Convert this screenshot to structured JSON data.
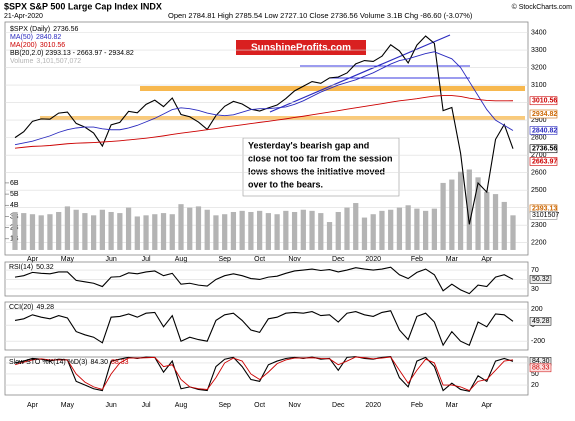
{
  "header": {
    "title": "$SPX S&P 500 Large Cap Index INDX",
    "date": "21-Apr-2020",
    "source": "© StockCharts.com",
    "quote": "Open 2784.81  High 2785.54  Low 2727.10  Close 2736.56  Volume 3.1B  Chg -86.60 (-3.07%)",
    "logo": "SunshineProfits.com",
    "annotation": [
      "Yesterday's bearish gap and",
      "close not too far from the session",
      "lows shows the initiative moved",
      "over to the bears."
    ]
  },
  "chart_data": [
    {
      "type": "line",
      "categories": [
        null,
        null,
        "Apr",
        null,
        null,
        null,
        "May",
        null,
        null,
        null,
        null,
        "Jun",
        null,
        null,
        null,
        "Jul",
        null,
        null,
        null,
        "Aug",
        null,
        null,
        null,
        null,
        "Sep",
        null,
        null,
        null,
        "Oct",
        null,
        null,
        null,
        "Nov",
        null,
        null,
        null,
        null,
        "Dec",
        null,
        null,
        null,
        "2020",
        null,
        null,
        null,
        null,
        "Feb",
        null,
        null,
        null,
        "Mar",
        null,
        null,
        null,
        "Apr",
        null,
        null,
        null
      ],
      "ylim": [
        2130,
        3460
      ],
      "yticks": [
        2200,
        2300,
        2400,
        2500,
        2600,
        2700,
        2800,
        2900,
        3000,
        3100,
        3200,
        3300,
        3400
      ],
      "y2lim": [
        -450000000,
        20400000000
      ],
      "y2ticks": [
        {
          "value": 1000000000,
          "label": "1B"
        },
        {
          "value": 2000000000,
          "label": "2B"
        },
        {
          "value": 3000000000,
          "label": "3B"
        },
        {
          "value": 4000000000,
          "label": "4B"
        },
        {
          "value": 5000000000,
          "label": "5B"
        },
        {
          "value": 6000000000,
          "label": "6B"
        }
      ],
      "grid": true,
      "series": [
        {
          "name": "$SPX (Daily)",
          "last_label": "2736.56",
          "color": "#000000",
          "values": [
            2800,
            2834,
            2893,
            2907,
            2905,
            2940,
            2946,
            2881,
            2860,
            2826,
            2752,
            2873,
            2887,
            2950,
            2942,
            2990,
            3014,
            2977,
            3026,
            2932,
            2919,
            2889,
            2847,
            2926,
            2979,
            3007,
            2992,
            2962,
            2952,
            2970,
            2986,
            3023,
            3067,
            3093,
            3120,
            3110,
            3141,
            3146,
            3169,
            3221,
            3240,
            3235,
            3265,
            3330,
            3295,
            3226,
            3328,
            3380,
            3338,
            2954,
            2972,
            2711,
            2305,
            2541,
            2489,
            2790,
            2875,
            2736.56
          ]
        },
        {
          "name": "MA(50)",
          "last_label": "2840.82",
          "color": "#2b2bbf",
          "values": [
            2760,
            2770,
            2780,
            2795,
            2810,
            2830,
            2845,
            2855,
            2860,
            2860,
            2850,
            2845,
            2845,
            2855,
            2870,
            2890,
            2910,
            2935,
            2960,
            2970,
            2965,
            2955,
            2940,
            2930,
            2925,
            2930,
            2945,
            2960,
            2965,
            2965,
            2970,
            2975,
            2990,
            3010,
            3035,
            3060,
            3080,
            3100,
            3115,
            3130,
            3150,
            3170,
            3195,
            3220,
            3240,
            3250,
            3265,
            3280,
            3290,
            3270,
            3250,
            3200,
            3120,
            3040,
            2960,
            2900,
            2870,
            2840.82
          ]
        },
        {
          "name": "MA(200)",
          "last_label": "3010.56",
          "color": "#cc0000",
          "values": [
            2740,
            2745,
            2750,
            2752,
            2755,
            2760,
            2765,
            2768,
            2770,
            2772,
            2775,
            2778,
            2782,
            2787,
            2792,
            2797,
            2803,
            2810,
            2818,
            2825,
            2832,
            2838,
            2845,
            2852,
            2860,
            2867,
            2873,
            2880,
            2887,
            2893,
            2900,
            2907,
            2915,
            2922,
            2930,
            2938,
            2946,
            2954,
            2962,
            2970,
            2978,
            2986,
            2994,
            3002,
            3010,
            3016,
            3022,
            3030,
            3037,
            3040,
            3040,
            3035,
            3025,
            3018,
            3012,
            3010,
            3010,
            3010.56
          ]
        },
        {
          "name": "Volume",
          "last_label": "3,101,507,072",
          "color": "#b4b4b4",
          "axis": "y2",
          "values": [
            3400000000,
            3300000000,
            3200000000,
            3100000000,
            3200000000,
            3400000000,
            3900000000,
            3600000000,
            3300000000,
            3100000000,
            3600000000,
            3400000000,
            3300000000,
            3800000000,
            3000000000,
            3100000000,
            3200000000,
            3300000000,
            3200000000,
            4100000000,
            3800000000,
            3900000000,
            3600000000,
            3100000000,
            3200000000,
            3400000000,
            3500000000,
            3400000000,
            3500000000,
            3300000000,
            3200000000,
            3500000000,
            3400000000,
            3600000000,
            3500000000,
            3300000000,
            2500000000,
            3400000000,
            3800000000,
            4200000000,
            2900000000,
            3200000000,
            3500000000,
            3600000000,
            3800000000,
            4000000000,
            3700000000,
            3500000000,
            3700000000,
            6000000000,
            6300000000,
            7000000000,
            7200000000,
            6500000000,
            5200000000,
            5000000000,
            4300000000,
            3101507072
          ]
        }
      ],
      "legend_texts": [
        "BB(20,2.0) 2393.13 - 2663.97 - 2934.82"
      ],
      "right_labels": [
        {
          "value": 3010.56,
          "label": "3010.56",
          "color": "#cc0000"
        },
        {
          "value": 2934.82,
          "label": "2934.82",
          "color": "#cc6600"
        },
        {
          "value": 2840.82,
          "label": "2840.82",
          "color": "#2b2bbf"
        },
        {
          "value": 2736.56,
          "label": "2736.56",
          "color": "#000000"
        },
        {
          "value": 2663.97,
          "label": "2663.97",
          "color": "#cc0000"
        },
        {
          "value": 2393.13,
          "label": "2393.13",
          "color": "#cc6600"
        }
      ],
      "volume_label": {
        "value": 3101507072,
        "label": "3101507"
      }
    },
    {
      "type": "line",
      "title": "RSI(14)",
      "last_labels": [
        "50.32"
      ],
      "ylim": [
        15,
        87
      ],
      "yticks": [
        30,
        50,
        70
      ],
      "grid": true,
      "series": [
        {
          "color": "#000000",
          "values": [
            55,
            58,
            65,
            63,
            62,
            66,
            66,
            48,
            45,
            42,
            35,
            55,
            56,
            64,
            62,
            66,
            68,
            58,
            63,
            40,
            42,
            38,
            36,
            50,
            58,
            62,
            58,
            52,
            50,
            55,
            57,
            63,
            68,
            70,
            72,
            69,
            71,
            66,
            70,
            75,
            72,
            70,
            72,
            76,
            60,
            52,
            65,
            72,
            60,
            26,
            40,
            28,
            20,
            38,
            35,
            55,
            60,
            50.32
          ]
        }
      ]
    },
    {
      "type": "line",
      "title": "CCI(20)",
      "last_labels": [
        "49.28"
      ],
      "ylim": [
        -310,
        290
      ],
      "yticks": [
        -200,
        0,
        200
      ],
      "grid": true,
      "series": [
        {
          "color": "#000000",
          "values": [
            60,
            80,
            130,
            100,
            80,
            120,
            90,
            -80,
            -120,
            -150,
            -220,
            100,
            110,
            140,
            100,
            150,
            160,
            -20,
            120,
            -200,
            -150,
            -180,
            -200,
            60,
            130,
            150,
            60,
            -60,
            -90,
            80,
            100,
            150,
            160,
            150,
            170,
            120,
            130,
            40,
            150,
            170,
            130,
            110,
            160,
            180,
            -60,
            -180,
            110,
            150,
            40,
            -250,
            -80,
            -200,
            -250,
            40,
            -20,
            140,
            130,
            49.28
          ]
        }
      ]
    },
    {
      "type": "line",
      "title": "Slow STO %K(14) %D(3)",
      "last_labels": [
        "84.30",
        "88.33"
      ],
      "ylim": [
        -7,
        96
      ],
      "yticks": [
        20,
        50,
        80
      ],
      "grid": true,
      "series": [
        {
          "color": "#000000",
          "values": [
            80,
            85,
            92,
            90,
            85,
            90,
            88,
            30,
            20,
            10,
            5,
            85,
            90,
            95,
            92,
            96,
            95,
            55,
            85,
            10,
            15,
            8,
            5,
            70,
            90,
            95,
            70,
            35,
            30,
            75,
            85,
            92,
            95,
            92,
            96,
            90,
            92,
            60,
            95,
            97,
            92,
            90,
            95,
            97,
            40,
            15,
            85,
            95,
            70,
            5,
            25,
            8,
            3,
            45,
            30,
            85,
            92,
            84.3
          ]
        },
        {
          "color": "#cc0000",
          "values": [
            75,
            82,
            88,
            91,
            88,
            88,
            88,
            50,
            28,
            15,
            8,
            50,
            80,
            93,
            93,
            94,
            95,
            70,
            75,
            35,
            15,
            10,
            8,
            40,
            80,
            93,
            85,
            50,
            35,
            55,
            78,
            88,
            93,
            93,
            94,
            92,
            91,
            75,
            85,
            96,
            94,
            91,
            93,
            96,
            60,
            25,
            60,
            90,
            80,
            20,
            20,
            15,
            5,
            30,
            35,
            60,
            85,
            88.33
          ]
        }
      ]
    }
  ]
}
